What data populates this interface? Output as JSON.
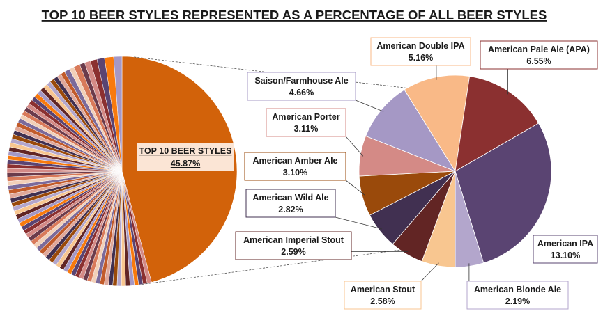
{
  "chart_data": {
    "type": "pie",
    "title": "TOP 10 BEER STYLES REPRESENTED  AS A PERCENTAGE  OF ALL BEER STYLES",
    "main_pie": {
      "highlight_label": "TOP 10 BEER STYLES",
      "highlight_value": 45.87,
      "highlight_value_text": "45.87%",
      "highlight_color": "#d2620a",
      "other_styles_total": 54.13
    },
    "detail_pie": {
      "slices": [
        {
          "name": "American IPA",
          "value": 13.1,
          "value_text": "13.10%",
          "color": "#5a4472"
        },
        {
          "name": "American Blonde Ale",
          "value": 2.19,
          "value_text": "2.19%",
          "color": "#b3a6cc"
        },
        {
          "name": "American Stout",
          "value": 2.58,
          "value_text": "2.58%",
          "color": "#f8c690"
        },
        {
          "name": "American Imperial Stout",
          "value": 2.59,
          "value_text": "2.59%",
          "color": "#622524"
        },
        {
          "name": "American Wild Ale",
          "value": 2.82,
          "value_text": "2.82%",
          "color": "#413051"
        },
        {
          "name": "American Amber Ale",
          "value": 3.1,
          "value_text": "3.10%",
          "color": "#9a4a0b"
        },
        {
          "name": "American Porter",
          "value": 3.11,
          "value_text": "3.11%",
          "color": "#d48a86"
        },
        {
          "name": "Saison/Farmhouse  Ale",
          "value": 4.66,
          "value_text": "4.66%",
          "color": "#a598c5"
        },
        {
          "name": "American Double IPA",
          "value": 5.16,
          "value_text": "5.16%",
          "color": "#f9b987"
        },
        {
          "name": "American Pale Ale (APA)",
          "value": 6.55,
          "value_text": "6.55%",
          "color": "#8b3030"
        }
      ]
    }
  }
}
